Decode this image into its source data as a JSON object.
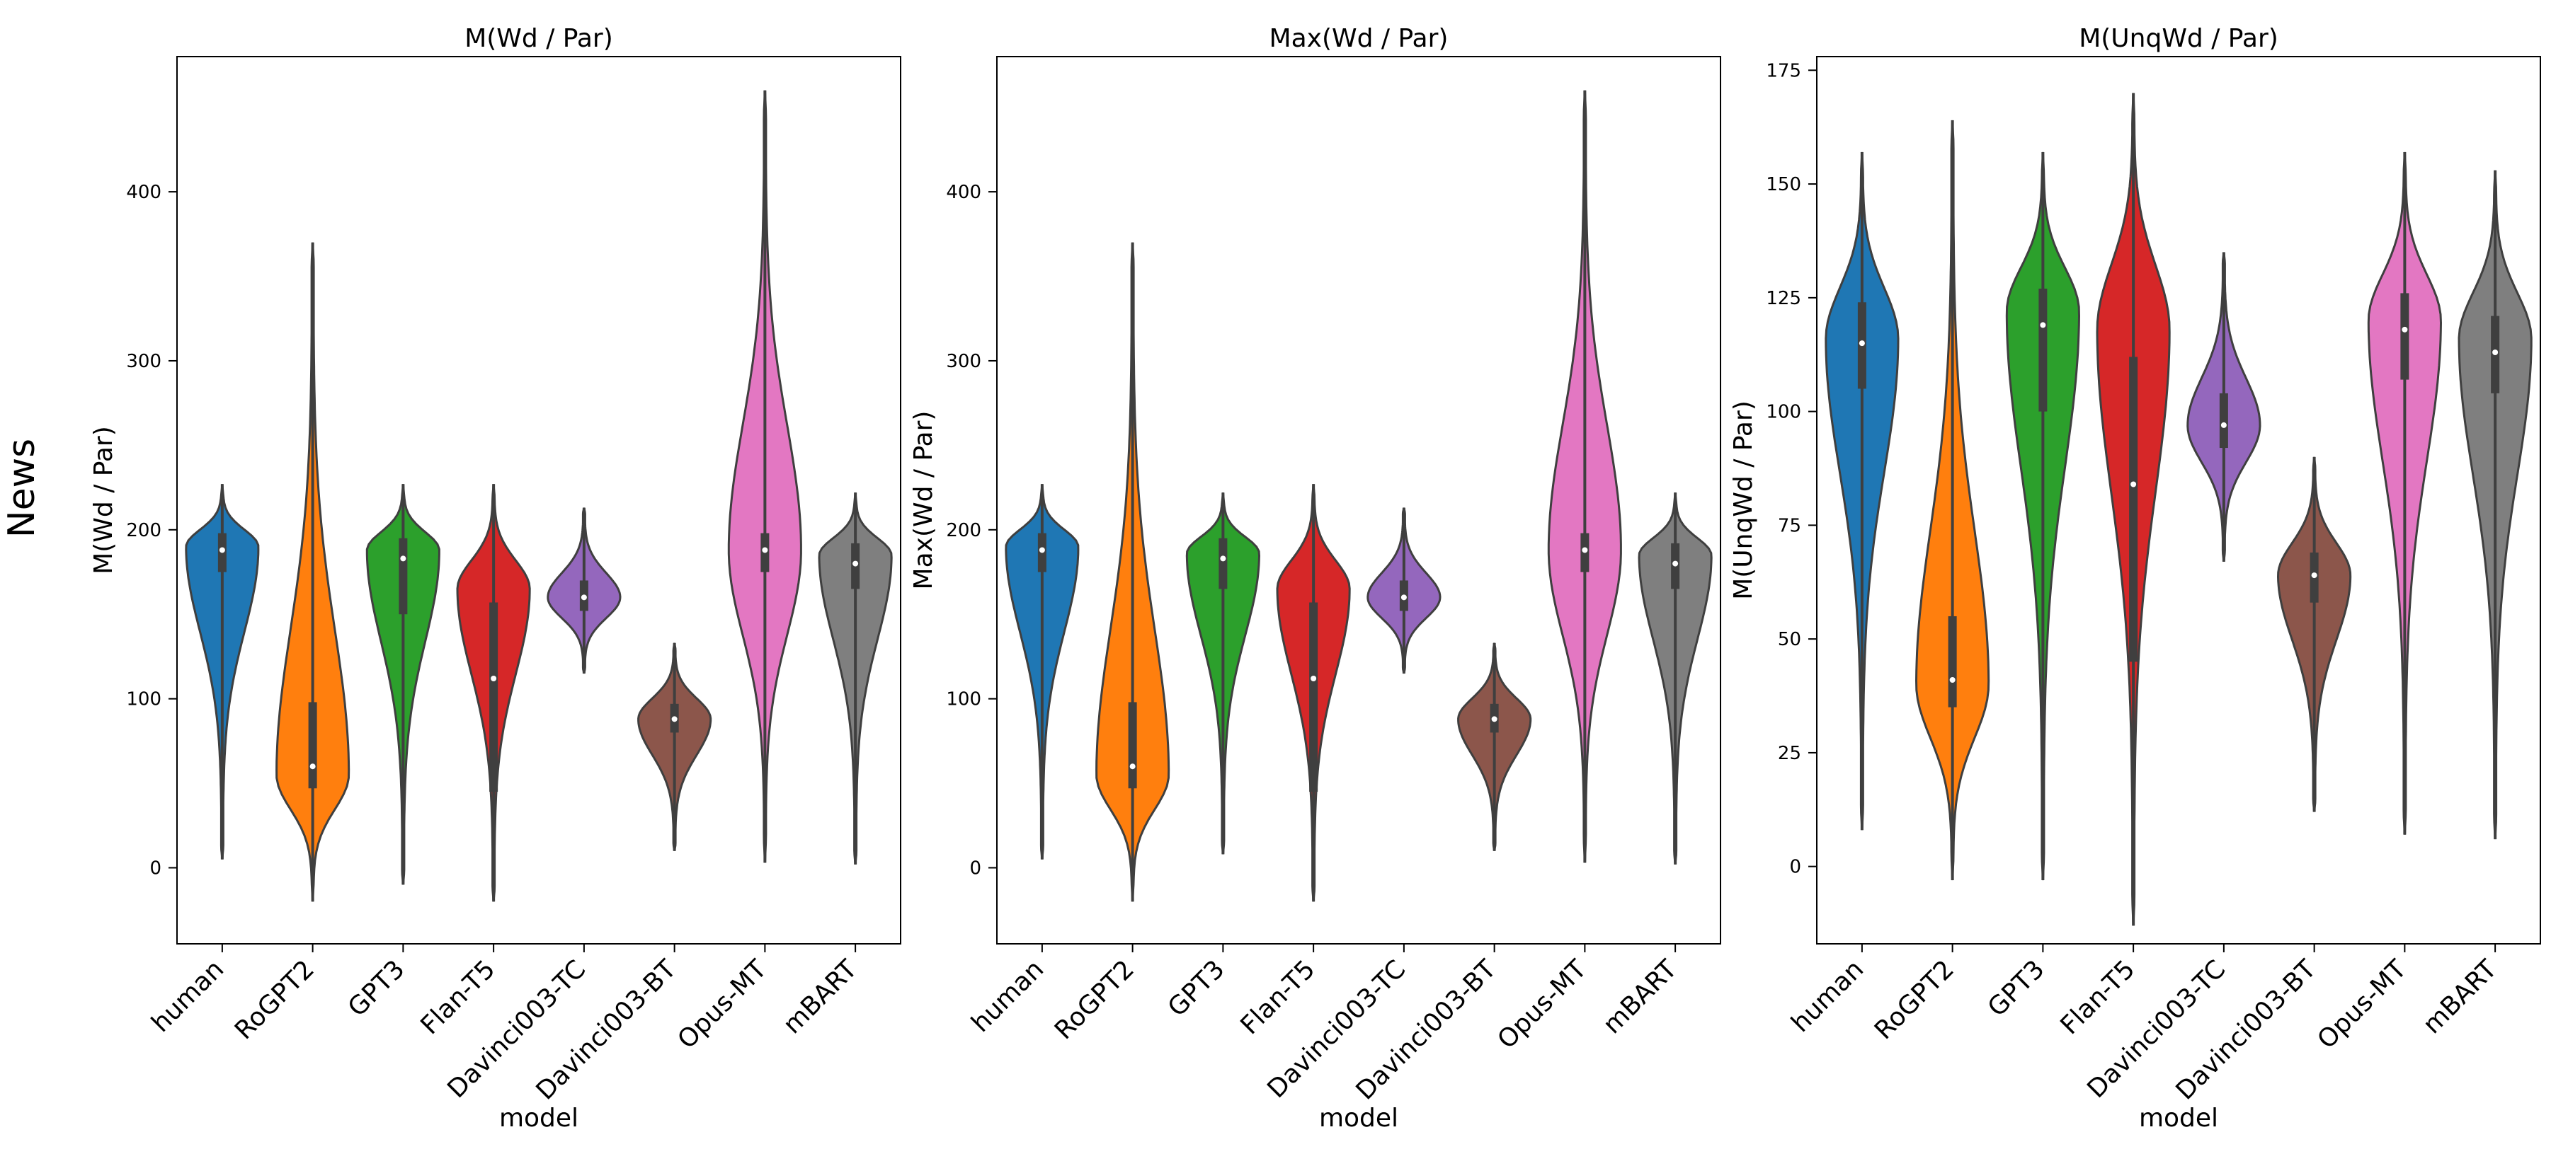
{
  "row_label": "News",
  "chart_data": [
    {
      "type": "violin",
      "title": "M(Wd / Par)",
      "xlabel": "model",
      "ylabel": "M(Wd / Par)",
      "ylim": [
        -45,
        480
      ],
      "yticks": [
        0,
        100,
        200,
        300,
        400
      ],
      "grid": false,
      "legend": "none",
      "categories": [
        "human",
        "RoGPT2",
        "GPT3",
        "Flan-T5",
        "Davinci003-TC",
        "Davinci003-BT",
        "Opus-MT",
        "mBART"
      ],
      "series": [
        {
          "min": 5,
          "max": 227,
          "q1": 175,
          "median": 188,
          "q3": 198,
          "mode": 190
        },
        {
          "min": -20,
          "max": 370,
          "q1": 47,
          "median": 60,
          "q3": 98,
          "mode": 55
        },
        {
          "min": -10,
          "max": 227,
          "q1": 150,
          "median": 183,
          "q3": 195,
          "mode": 188
        },
        {
          "min": -20,
          "max": 227,
          "q1": 45,
          "median": 112,
          "q3": 157,
          "mode": 165
        },
        {
          "min": 115,
          "max": 213,
          "q1": 152,
          "median": 160,
          "q3": 170,
          "mode": 160
        },
        {
          "min": 10,
          "max": 133,
          "q1": 80,
          "median": 88,
          "q3": 97,
          "mode": 88
        },
        {
          "min": 3,
          "max": 460,
          "q1": 175,
          "median": 188,
          "q3": 198,
          "mode": 188
        },
        {
          "min": 2,
          "max": 222,
          "q1": 165,
          "median": 180,
          "q3": 192,
          "mode": 185
        }
      ]
    },
    {
      "type": "violin",
      "title": "Max(Wd / Par)",
      "xlabel": "model",
      "ylabel": "Max(Wd / Par)",
      "ylim": [
        -45,
        480
      ],
      "yticks": [
        0,
        100,
        200,
        300,
        400
      ],
      "grid": false,
      "legend": "none",
      "categories": [
        "human",
        "RoGPT2",
        "GPT3",
        "Flan-T5",
        "Davinci003-TC",
        "Davinci003-BT",
        "Opus-MT",
        "mBART"
      ],
      "series": [
        {
          "min": 5,
          "max": 227,
          "q1": 175,
          "median": 188,
          "q3": 198,
          "mode": 190
        },
        {
          "min": -20,
          "max": 370,
          "q1": 47,
          "median": 60,
          "q3": 98,
          "mode": 55
        },
        {
          "min": 8,
          "max": 222,
          "q1": 165,
          "median": 183,
          "q3": 195,
          "mode": 186
        },
        {
          "min": -20,
          "max": 227,
          "q1": 45,
          "median": 112,
          "q3": 157,
          "mode": 165
        },
        {
          "min": 115,
          "max": 213,
          "q1": 152,
          "median": 160,
          "q3": 170,
          "mode": 160
        },
        {
          "min": 10,
          "max": 133,
          "q1": 80,
          "median": 88,
          "q3": 97,
          "mode": 88
        },
        {
          "min": 3,
          "max": 460,
          "q1": 175,
          "median": 188,
          "q3": 198,
          "mode": 188
        },
        {
          "min": 2,
          "max": 222,
          "q1": 165,
          "median": 180,
          "q3": 192,
          "mode": 185
        }
      ]
    },
    {
      "type": "violin",
      "title": "M(UnqWd / Par)",
      "xlabel": "model",
      "ylabel": "M(UnqWd / Par)",
      "ylim": [
        -17,
        178
      ],
      "yticks": [
        0,
        25,
        50,
        75,
        100,
        125,
        150,
        175
      ],
      "grid": false,
      "legend": "none",
      "categories": [
        "human",
        "RoGPT2",
        "GPT3",
        "Flan-T5",
        "Davinci003-TC",
        "Davinci003-BT",
        "Opus-MT",
        "mBART"
      ],
      "series": [
        {
          "min": 8,
          "max": 157,
          "q1": 105,
          "median": 115,
          "q3": 124,
          "mode": 116
        },
        {
          "min": -3,
          "max": 164,
          "q1": 35,
          "median": 41,
          "q3": 55,
          "mode": 40
        },
        {
          "min": -3,
          "max": 157,
          "q1": 100,
          "median": 119,
          "q3": 127,
          "mode": 122
        },
        {
          "min": -13,
          "max": 170,
          "q1": 45,
          "median": 84,
          "q3": 112,
          "mode": 118
        },
        {
          "min": 67,
          "max": 135,
          "q1": 92,
          "median": 97,
          "q3": 104,
          "mode": 97
        },
        {
          "min": 12,
          "max": 90,
          "q1": 58,
          "median": 64,
          "q3": 69,
          "mode": 64
        },
        {
          "min": 7,
          "max": 157,
          "q1": 107,
          "median": 118,
          "q3": 126,
          "mode": 120
        },
        {
          "min": 6,
          "max": 153,
          "q1": 104,
          "median": 113,
          "q3": 121,
          "mode": 116
        }
      ]
    }
  ],
  "colors": [
    "#1f77b4",
    "#ff7f0e",
    "#2ca02c",
    "#d62728",
    "#9467bd",
    "#8c564b",
    "#e377c2",
    "#7f7f7f"
  ]
}
